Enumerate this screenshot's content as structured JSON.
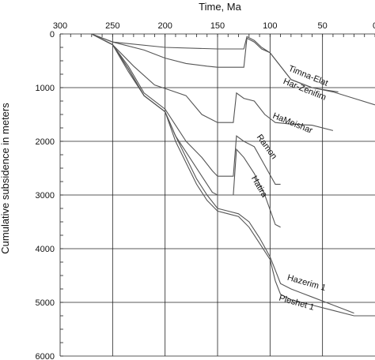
{
  "chart_data": {
    "type": "line",
    "xlabel": "Time, Ma",
    "ylabel": "Cumulative subsidence in meters",
    "xlim": [
      300,
      0
    ],
    "ylim": [
      0,
      6000
    ],
    "x_ticks": [
      300,
      250,
      200,
      150,
      100,
      50,
      0
    ],
    "y_ticks": [
      0,
      1000,
      2000,
      3000,
      4000,
      5000,
      6000
    ],
    "x_axis_position": "top",
    "y_reversed": true,
    "grid": true,
    "series": [
      {
        "name": "Timna-Elat",
        "x": [
          270,
          250,
          200,
          150,
          125,
          122,
          115,
          108,
          100,
          90,
          80,
          60,
          45,
          35
        ],
        "y": [
          0,
          150,
          250,
          280,
          280,
          50,
          120,
          250,
          350,
          600,
          850,
          1000,
          1050,
          1080
        ]
      },
      {
        "name": "Har-Zenifim",
        "x": [
          270,
          250,
          220,
          200,
          180,
          160,
          150,
          125,
          122,
          115,
          108,
          100,
          90,
          80,
          60,
          40,
          20,
          0
        ],
        "y": [
          0,
          150,
          300,
          450,
          550,
          600,
          620,
          620,
          80,
          150,
          280,
          350,
          600,
          850,
          1000,
          1080,
          1200,
          1320
        ]
      },
      {
        "name": "HaMeishar",
        "x": [
          270,
          250,
          230,
          210,
          195,
          180,
          165,
          150,
          135,
          132,
          125,
          115,
          105,
          95,
          80,
          60,
          40
        ],
        "y": [
          0,
          200,
          600,
          950,
          1050,
          1150,
          1500,
          1650,
          1650,
          1100,
          1200,
          1250,
          1500,
          1650,
          1680,
          1700,
          1800
        ]
      },
      {
        "name": "Ramon",
        "x": [
          270,
          250,
          235,
          220,
          200,
          190,
          180,
          165,
          155,
          150,
          135,
          132,
          125,
          115,
          105,
          95,
          90
        ],
        "y": [
          0,
          200,
          600,
          1100,
          1400,
          1700,
          2000,
          2300,
          2550,
          2650,
          2650,
          1900,
          2000,
          2100,
          2450,
          2800,
          2800
        ]
      },
      {
        "name": "Hatira",
        "x": [
          270,
          250,
          235,
          220,
          200,
          190,
          180,
          165,
          155,
          150,
          135,
          132,
          125,
          115,
          105,
          95,
          90
        ],
        "y": [
          0,
          200,
          700,
          1150,
          1450,
          1900,
          2200,
          2650,
          2950,
          3000,
          3000,
          2150,
          2300,
          2600,
          3000,
          3550,
          3600
        ]
      },
      {
        "name": "Hazerim 1",
        "x": [
          270,
          250,
          235,
          220,
          200,
          190,
          180,
          170,
          160,
          150,
          140,
          130,
          120,
          110,
          100,
          95,
          90,
          80,
          60,
          40,
          20
        ],
        "y": [
          0,
          200,
          650,
          1150,
          1450,
          1900,
          2300,
          2700,
          3000,
          3250,
          3300,
          3350,
          3500,
          3800,
          4150,
          4400,
          4650,
          4750,
          4900,
          5050,
          5200
        ]
      },
      {
        "name": "Pleshet 1",
        "x": [
          270,
          250,
          235,
          220,
          200,
          190,
          180,
          170,
          160,
          150,
          140,
          130,
          120,
          110,
          100,
          95,
          90,
          80,
          60,
          40,
          20,
          0
        ],
        "y": [
          0,
          200,
          650,
          1150,
          1450,
          2000,
          2400,
          2800,
          3100,
          3300,
          3350,
          3400,
          3600,
          3900,
          4200,
          4600,
          4850,
          4950,
          5050,
          5150,
          5250,
          5250
        ]
      }
    ]
  }
}
